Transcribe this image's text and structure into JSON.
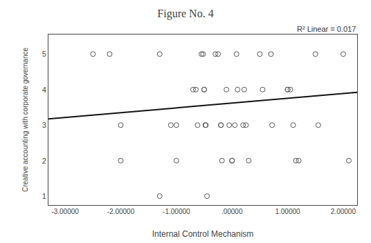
{
  "chart_data": {
    "type": "scatter",
    "title": "Figure No. 4",
    "xlabel": "Internal Control Mechanism",
    "ylabel": "Creative accounting with corporate governance",
    "annotation": "R² Linear = 0.017",
    "xlim": [
      -3.3,
      2.25
    ],
    "ylim": [
      0.75,
      5.55
    ],
    "xticks": [
      {
        "value": -3.0,
        "label": "-3.00000"
      },
      {
        "value": -2.0,
        "label": "-2.00000"
      },
      {
        "value": -1.0,
        "label": "-1.00000"
      },
      {
        "value": 0.0,
        "label": ".00000"
      },
      {
        "value": 1.0,
        "label": "1.00000"
      },
      {
        "value": 2.0,
        "label": "2.00000"
      }
    ],
    "yticks": [
      1,
      2,
      3,
      4,
      5
    ],
    "grid": false,
    "series": [
      {
        "type": "scatter",
        "color": "#555555",
        "marker": "open circle",
        "x": [
          -2.5,
          -2.2,
          -2.0,
          -2.0,
          -1.3,
          -1.3,
          -1.1,
          -1.0,
          -1.0,
          -0.7,
          -0.65,
          -0.62,
          -0.55,
          -0.52,
          -0.5,
          -0.5,
          -0.48,
          -0.47,
          -0.45,
          -0.3,
          -0.25,
          -0.2,
          -0.2,
          -0.18,
          -0.1,
          -0.05,
          0.0,
          0.0,
          0.05,
          0.08,
          0.1,
          0.2,
          0.22,
          0.25,
          0.3,
          0.5,
          0.55,
          0.7,
          0.72,
          1.0,
          1.0,
          1.05,
          1.1,
          1.15,
          1.2,
          1.5,
          1.55,
          2.0,
          2.1
        ],
        "values": [
          5.0,
          5.0,
          3.0,
          2.0,
          5.0,
          1.0,
          3.0,
          3.0,
          2.0,
          4.0,
          4.0,
          3.0,
          5.0,
          5.0,
          4.0,
          4.0,
          3.0,
          3.0,
          1.0,
          5.0,
          5.0,
          3.0,
          3.0,
          2.0,
          4.0,
          3.0,
          2.0,
          2.0,
          3.0,
          5.0,
          4.0,
          3.0,
          4.0,
          3.0,
          2.0,
          5.0,
          4.0,
          5.0,
          3.0,
          4.0,
          4.0,
          4.0,
          3.0,
          2.0,
          2.0,
          5.0,
          3.0,
          5.0,
          2.0
        ]
      },
      {
        "type": "line",
        "color": "#111111",
        "line_style": "solid",
        "x": [
          -3.3,
          2.25
        ],
        "values": [
          3.1745,
          3.92375
        ]
      }
    ]
  }
}
